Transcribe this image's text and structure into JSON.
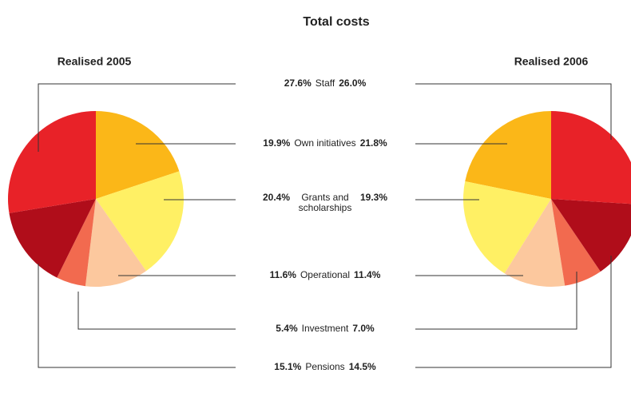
{
  "chart_data": {
    "type": "pie",
    "title": "Total costs",
    "categories": [
      "Staff",
      "Own initiatives",
      "Grants and scholarships",
      "Operational",
      "Investment",
      "Pensions"
    ],
    "colors": [
      "#e82228",
      "#fbb718",
      "#fff064",
      "#fcc89e",
      "#f26a4f",
      "#b00d1a"
    ],
    "series": [
      {
        "name": "Realised 2005",
        "values": [
          27.6,
          19.9,
          20.4,
          11.6,
          5.4,
          15.1
        ],
        "value_labels": [
          "27.6%",
          "19.9%",
          "20.4%",
          "11.6%",
          "5.4%",
          "15.1%"
        ]
      },
      {
        "name": "Realised 2006",
        "values": [
          26.0,
          21.8,
          19.3,
          11.4,
          7.0,
          14.5
        ],
        "value_labels": [
          "26.0%",
          "21.8%",
          "19.3%",
          "11.4%",
          "7.0%",
          "14.5%"
        ]
      }
    ]
  }
}
